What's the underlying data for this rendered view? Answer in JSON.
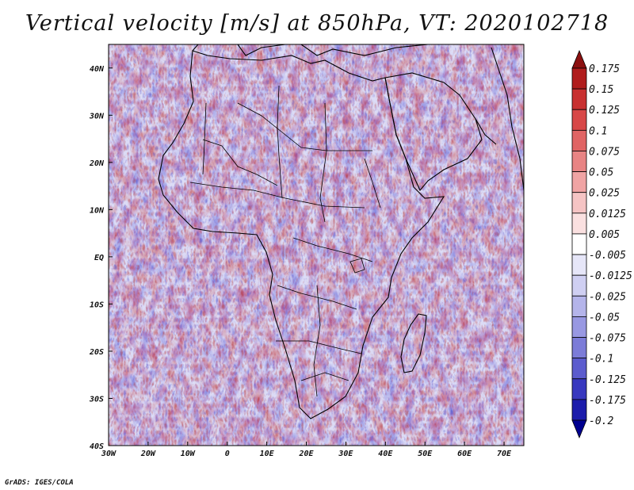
{
  "title": "Vertical velocity [m/s] at 850hPa, VT: 2020102718",
  "footer": "GrADS: IGES/COLA",
  "map": {
    "lon_range": [
      -30,
      75
    ],
    "lat_range": [
      -40,
      45
    ],
    "x_ticks": [
      "30W",
      "20W",
      "10W",
      "0",
      "10E",
      "20E",
      "30E",
      "40E",
      "50E",
      "60E",
      "70E"
    ],
    "y_ticks": [
      "40N",
      "30N",
      "20N",
      "10N",
      "EQ",
      "10S",
      "20S",
      "30S",
      "40S"
    ]
  },
  "colorbar": {
    "labels": [
      "0.175",
      "0.15",
      "0.125",
      "0.1",
      "0.075",
      "0.05",
      "0.025",
      "0.0125",
      "0.005",
      "-0.005",
      "-0.0125",
      "-0.025",
      "-0.05",
      "-0.075",
      "-0.1",
      "-0.125",
      "-0.175",
      "-0.2"
    ],
    "colors": [
      "#8b1010",
      "#b01c1c",
      "#c83030",
      "#d84848",
      "#e06464",
      "#e88484",
      "#f0a4a4",
      "#f5c4c4",
      "#fae0e0",
      "#ffffff",
      "#e6e6f8",
      "#cfcff2",
      "#b4b4ea",
      "#9898e2",
      "#7c7cd8",
      "#5c5cce",
      "#3838bf",
      "#1c1cab",
      "#000090"
    ]
  }
}
